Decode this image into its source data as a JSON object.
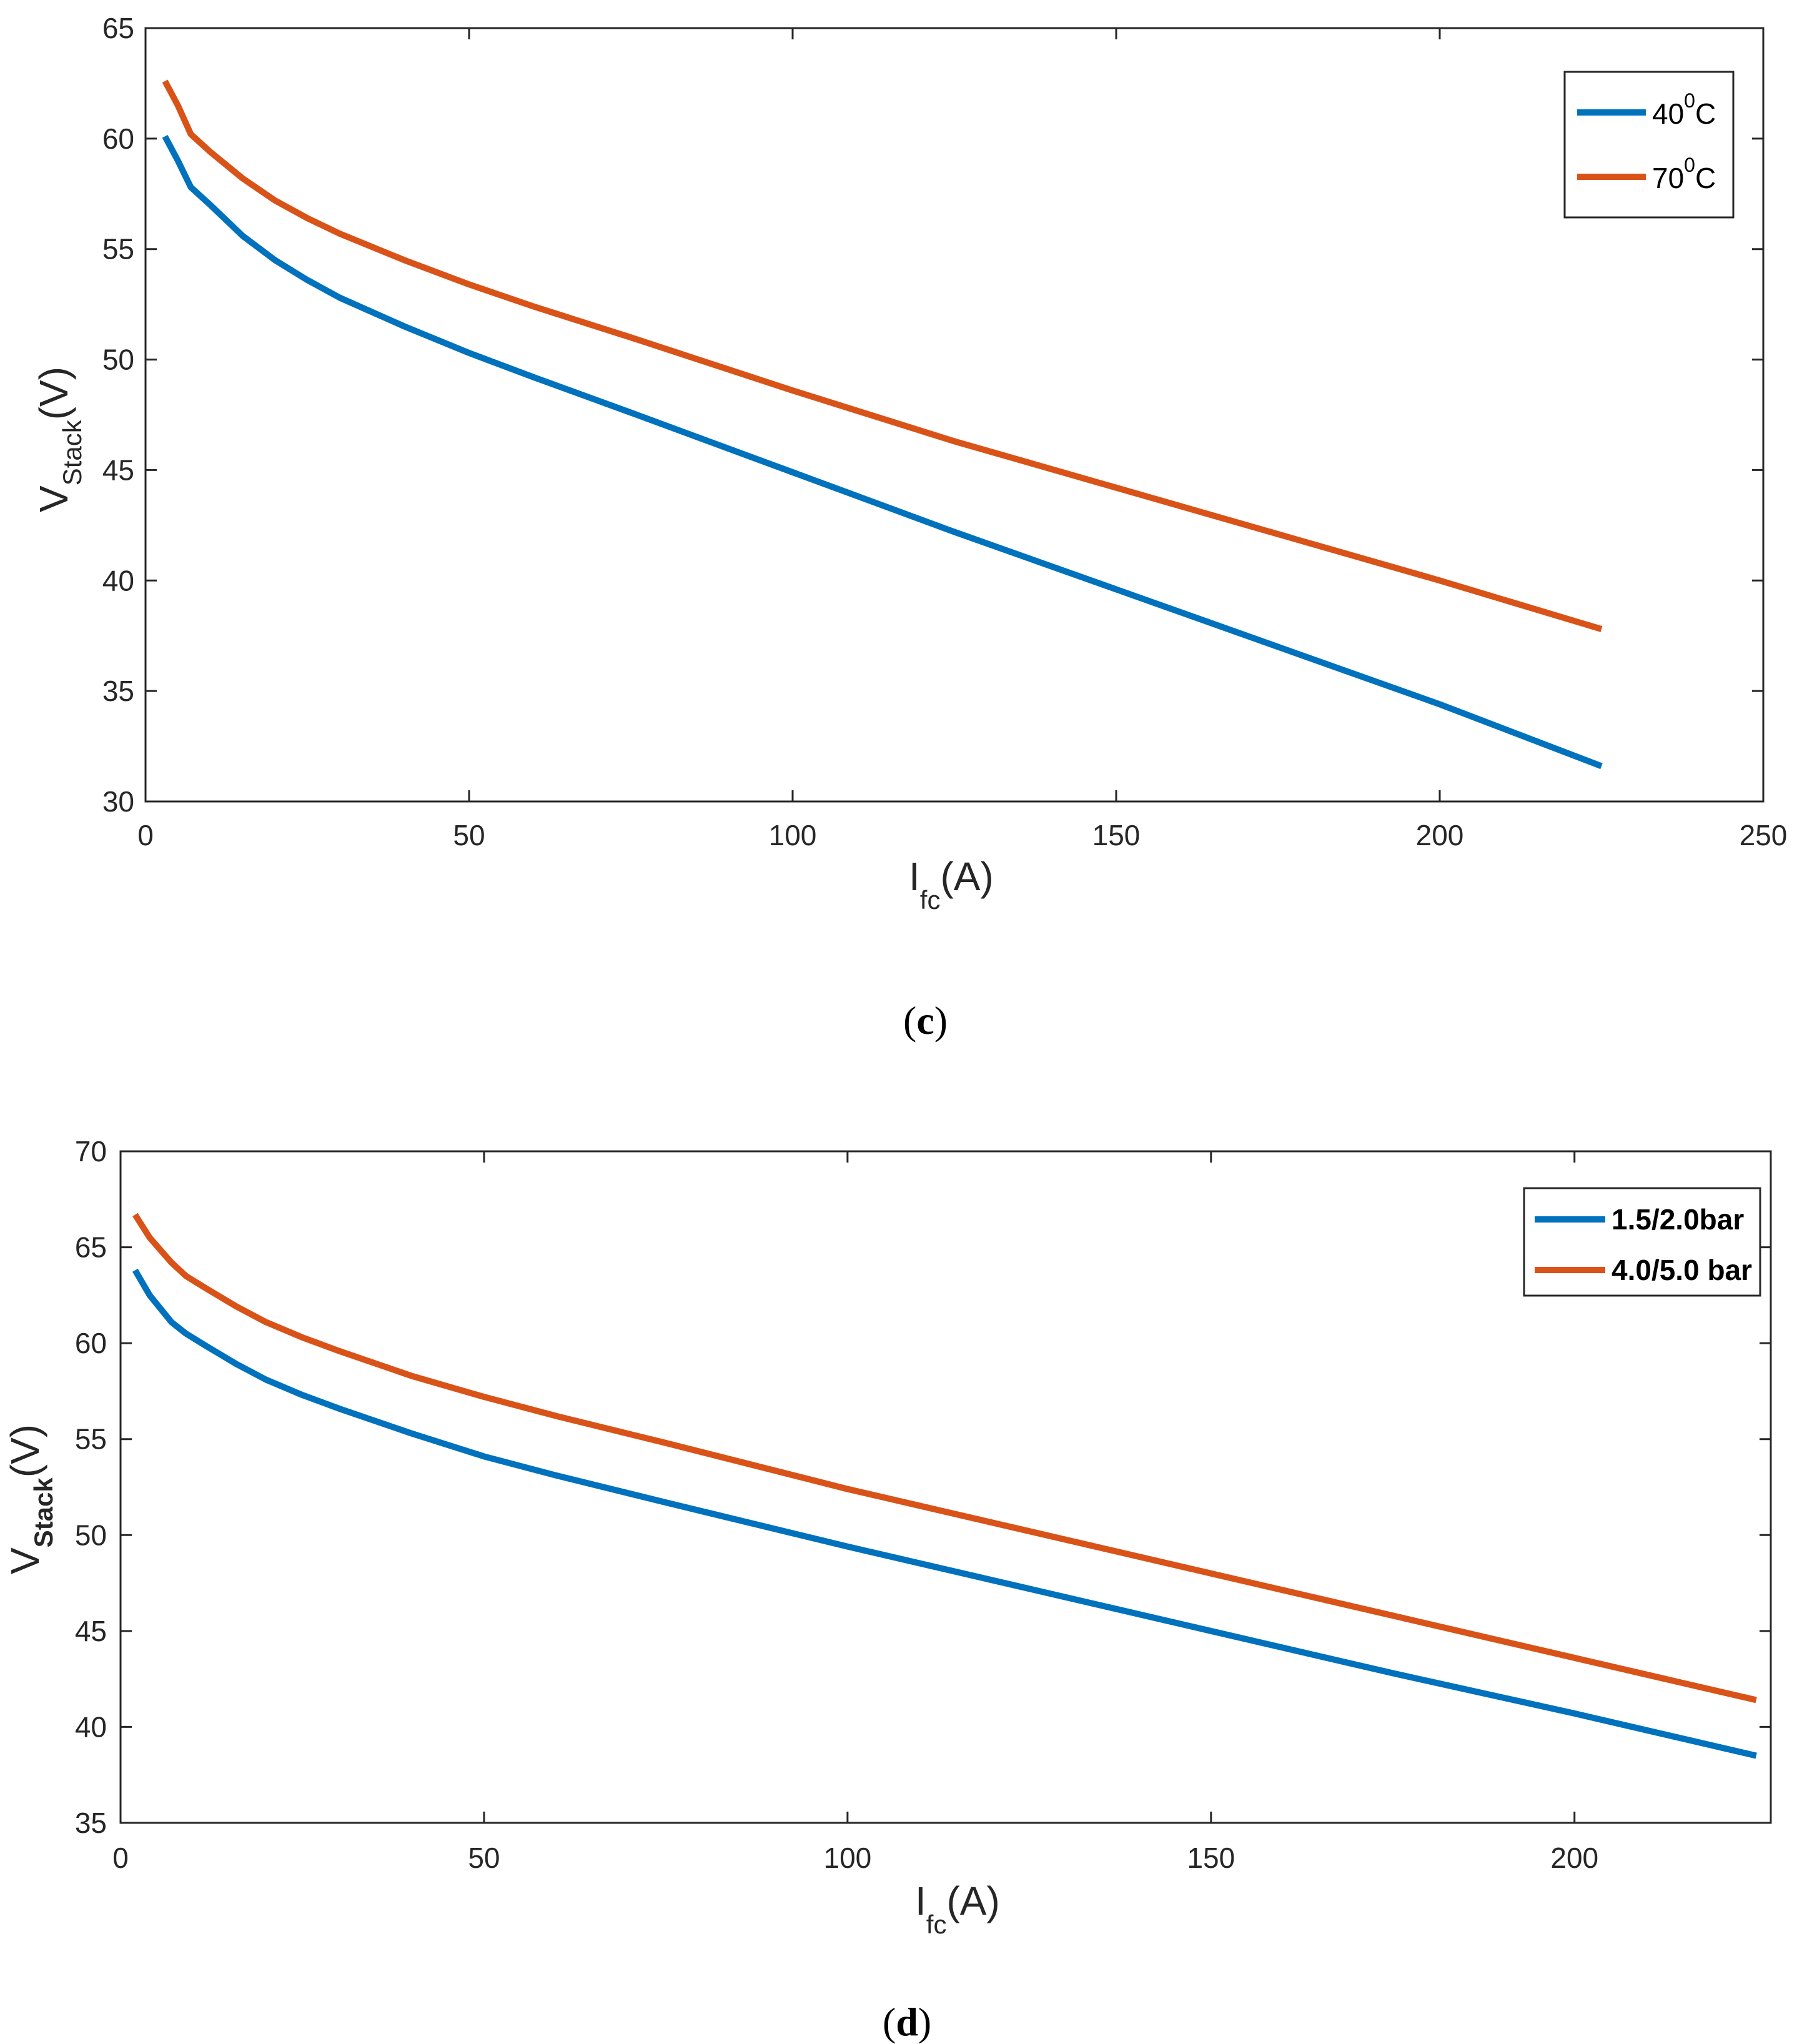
{
  "chart_data": [
    {
      "type": "line",
      "panel": "c",
      "xlabel": "I",
      "xlabel_sub": "fc",
      "xlabel_unit": "(A)",
      "ylabel": "V",
      "ylabel_sub": "Stack",
      "ylabel_unit": "(V)",
      "xlim": [
        0,
        250
      ],
      "ylim": [
        30,
        65
      ],
      "xticks": [
        "0",
        "50",
        "100",
        "150",
        "200",
        "250"
      ],
      "yticks": [
        "30",
        "35",
        "40",
        "45",
        "50",
        "55",
        "60",
        "65"
      ],
      "legend_position": "top-right",
      "series": [
        {
          "name": "40",
          "name_sup": "0",
          "name_suffix": "C",
          "color": "#0072BD",
          "x": [
            3,
            5,
            7,
            10,
            15,
            20,
            25,
            30,
            40,
            50,
            60,
            75,
            100,
            125,
            150,
            175,
            200,
            225
          ],
          "y": [
            60.1,
            59.0,
            57.8,
            57.0,
            55.6,
            54.5,
            53.6,
            52.8,
            51.5,
            50.3,
            49.2,
            47.6,
            44.9,
            42.2,
            39.6,
            37.0,
            34.4,
            31.6
          ]
        },
        {
          "name": "70",
          "name_sup": "0",
          "name_suffix": "C",
          "color": "#D95319",
          "x": [
            3,
            5,
            7,
            10,
            15,
            20,
            25,
            30,
            40,
            50,
            60,
            75,
            100,
            125,
            150,
            175,
            200,
            225
          ],
          "y": [
            62.6,
            61.5,
            60.2,
            59.4,
            58.2,
            57.2,
            56.4,
            55.7,
            54.5,
            53.4,
            52.4,
            51.0,
            48.6,
            46.3,
            44.2,
            42.1,
            40.0,
            37.8
          ]
        }
      ]
    },
    {
      "type": "line",
      "panel": "d",
      "xlabel": "I",
      "xlabel_sub": "fc",
      "xlabel_unit": "(A)",
      "ylabel": "V",
      "ylabel_sub": "Stack",
      "ylabel_unit": "(V)",
      "xlim": [
        0,
        227
      ],
      "ylim": [
        35,
        70
      ],
      "xticks": [
        "0",
        "50",
        "100",
        "150",
        "200"
      ],
      "yticks": [
        "35",
        "40",
        "45",
        "50",
        "55",
        "60",
        "65",
        "70"
      ],
      "legend_position": "top-right",
      "series": [
        {
          "name": "1.5/2.0bar",
          "color": "#0072BD",
          "x": [
            2,
            4,
            7,
            9,
            12,
            16,
            20,
            25,
            30,
            40,
            50,
            60,
            75,
            100,
            125,
            150,
            175,
            200,
            225
          ],
          "y": [
            63.8,
            62.5,
            61.1,
            60.5,
            59.8,
            58.9,
            58.1,
            57.3,
            56.6,
            55.3,
            54.1,
            53.1,
            51.7,
            49.4,
            47.2,
            45.0,
            42.8,
            40.7,
            38.5
          ]
        },
        {
          "name": "4.0/5.0 bar",
          "color": "#D95319",
          "x": [
            2,
            4,
            7,
            9,
            12,
            16,
            20,
            25,
            30,
            40,
            50,
            60,
            75,
            100,
            125,
            150,
            175,
            200,
            225
          ],
          "y": [
            66.7,
            65.5,
            64.2,
            63.5,
            62.8,
            61.9,
            61.1,
            60.3,
            59.6,
            58.3,
            57.2,
            56.2,
            54.8,
            52.4,
            50.2,
            48.0,
            45.8,
            43.6,
            41.4
          ]
        }
      ]
    }
  ],
  "panel_labels": [
    "c",
    "d"
  ]
}
